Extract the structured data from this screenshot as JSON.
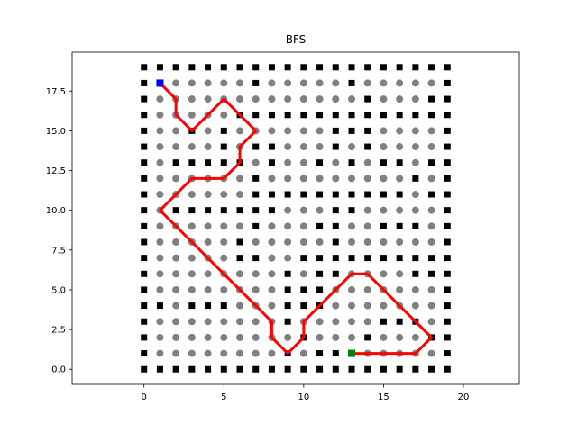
{
  "chart_data": {
    "type": "scatter",
    "title": "BFS",
    "xlabel": "",
    "ylabel": "",
    "xlim": [
      -4.5,
      23.5
    ],
    "ylim": [
      -0.95,
      19.95
    ],
    "grid": false,
    "x_ticks": [
      0,
      5,
      10,
      15,
      20
    ],
    "x_tick_labels": [
      "0",
      "5",
      "10",
      "15",
      "20"
    ],
    "y_ticks": [
      0.0,
      2.5,
      5.0,
      7.5,
      10.0,
      12.5,
      15.0,
      17.5
    ],
    "y_tick_labels": [
      "0.0",
      "2.5",
      "5.0",
      "7.5",
      "10.0",
      "12.5",
      "15.0",
      "17.5"
    ],
    "grid_size": {
      "cols": 20,
      "rows": 20
    },
    "colors": {
      "wall": "#000000",
      "visited": "#808080",
      "path": "#ff0000",
      "start": "#0000ff",
      "goal": "#008000"
    },
    "series": [
      {
        "role": "walls",
        "marker": "square",
        "color": "#000000",
        "points": [
          [
            7,
            18
          ],
          [
            13,
            18
          ],
          [
            14,
            17
          ],
          [
            18,
            17
          ],
          [
            6,
            16
          ],
          [
            7,
            16
          ],
          [
            8,
            16
          ],
          [
            9,
            16
          ],
          [
            10,
            16
          ],
          [
            11,
            16
          ],
          [
            12,
            16
          ],
          [
            13,
            16
          ],
          [
            14,
            16
          ],
          [
            15,
            16
          ],
          [
            16,
            16
          ],
          [
            17,
            16
          ],
          [
            18,
            16
          ],
          [
            3,
            15
          ],
          [
            5,
            15
          ],
          [
            12,
            15
          ],
          [
            13,
            15
          ],
          [
            14,
            15
          ],
          [
            5,
            14
          ],
          [
            7,
            14
          ],
          [
            8,
            14
          ],
          [
            12,
            14
          ],
          [
            14,
            14
          ],
          [
            2,
            13
          ],
          [
            3,
            13
          ],
          [
            4,
            13
          ],
          [
            5,
            13
          ],
          [
            6,
            13
          ],
          [
            8,
            13
          ],
          [
            11,
            13
          ],
          [
            13,
            13
          ],
          [
            15,
            13
          ],
          [
            16,
            13
          ],
          [
            18,
            13
          ],
          [
            7,
            12
          ],
          [
            17,
            12
          ],
          [
            7,
            11
          ],
          [
            8,
            11
          ],
          [
            9,
            11
          ],
          [
            10,
            11
          ],
          [
            11,
            11
          ],
          [
            12,
            11
          ],
          [
            13,
            11
          ],
          [
            14,
            11
          ],
          [
            15,
            11
          ],
          [
            16,
            11
          ],
          [
            18,
            11
          ],
          [
            2,
            10
          ],
          [
            3,
            10
          ],
          [
            4,
            10
          ],
          [
            5,
            10
          ],
          [
            6,
            10
          ],
          [
            7,
            10
          ],
          [
            8,
            10
          ],
          [
            12,
            10
          ],
          [
            13,
            10
          ],
          [
            7,
            9
          ],
          [
            11,
            9
          ],
          [
            12,
            9
          ],
          [
            15,
            9
          ],
          [
            16,
            9
          ],
          [
            17,
            9
          ],
          [
            6,
            8
          ],
          [
            12,
            8
          ],
          [
            6,
            7
          ],
          [
            7,
            7
          ],
          [
            10,
            7
          ],
          [
            11,
            7
          ],
          [
            12,
            7
          ],
          [
            13,
            7
          ],
          [
            14,
            7
          ],
          [
            15,
            7
          ],
          [
            16,
            7
          ],
          [
            17,
            7
          ],
          [
            18,
            7
          ],
          [
            9,
            6
          ],
          [
            11,
            6
          ],
          [
            12,
            6
          ],
          [
            17,
            6
          ],
          [
            18,
            6
          ],
          [
            9,
            5
          ],
          [
            10,
            5
          ],
          [
            11,
            5
          ],
          [
            1,
            4
          ],
          [
            3,
            4
          ],
          [
            4,
            4
          ],
          [
            5,
            4
          ],
          [
            9,
            4
          ],
          [
            10,
            4
          ],
          [
            11,
            4
          ],
          [
            9,
            3
          ],
          [
            15,
            3
          ],
          [
            16,
            3
          ],
          [
            17,
            3
          ],
          [
            10,
            2
          ],
          [
            14,
            2
          ],
          [
            18,
            2
          ],
          [
            9,
            1
          ],
          [
            11,
            1
          ],
          [
            12,
            1
          ]
        ]
      },
      {
        "role": "path",
        "marker": "line",
        "color": "#ff0000",
        "points": [
          [
            1,
            18
          ],
          [
            2,
            17
          ],
          [
            2,
            16
          ],
          [
            3,
            15
          ],
          [
            4,
            16
          ],
          [
            5,
            17
          ],
          [
            6,
            16
          ],
          [
            7,
            15
          ],
          [
            6,
            14
          ],
          [
            6,
            13
          ],
          [
            5,
            12
          ],
          [
            4,
            12
          ],
          [
            3,
            12
          ],
          [
            2,
            11
          ],
          [
            1,
            10
          ],
          [
            2,
            9
          ],
          [
            3,
            8
          ],
          [
            4,
            7
          ],
          [
            5,
            6
          ],
          [
            6,
            5
          ],
          [
            7,
            4
          ],
          [
            8,
            3
          ],
          [
            8,
            2
          ],
          [
            9,
            1
          ],
          [
            10,
            2
          ],
          [
            10,
            3
          ],
          [
            11,
            4
          ],
          [
            12,
            5
          ],
          [
            13,
            6
          ],
          [
            14,
            6
          ],
          [
            15,
            5
          ],
          [
            16,
            4
          ],
          [
            17,
            3
          ],
          [
            18,
            2
          ],
          [
            17,
            1
          ],
          [
            16,
            1
          ],
          [
            15,
            1
          ],
          [
            14,
            1
          ],
          [
            13,
            1
          ]
        ]
      },
      {
        "role": "start",
        "marker": "square",
        "color": "#0000ff",
        "points": [
          [
            1,
            18
          ]
        ]
      },
      {
        "role": "goal",
        "marker": "square",
        "color": "#008000",
        "points": [
          [
            13,
            1
          ]
        ]
      }
    ]
  }
}
